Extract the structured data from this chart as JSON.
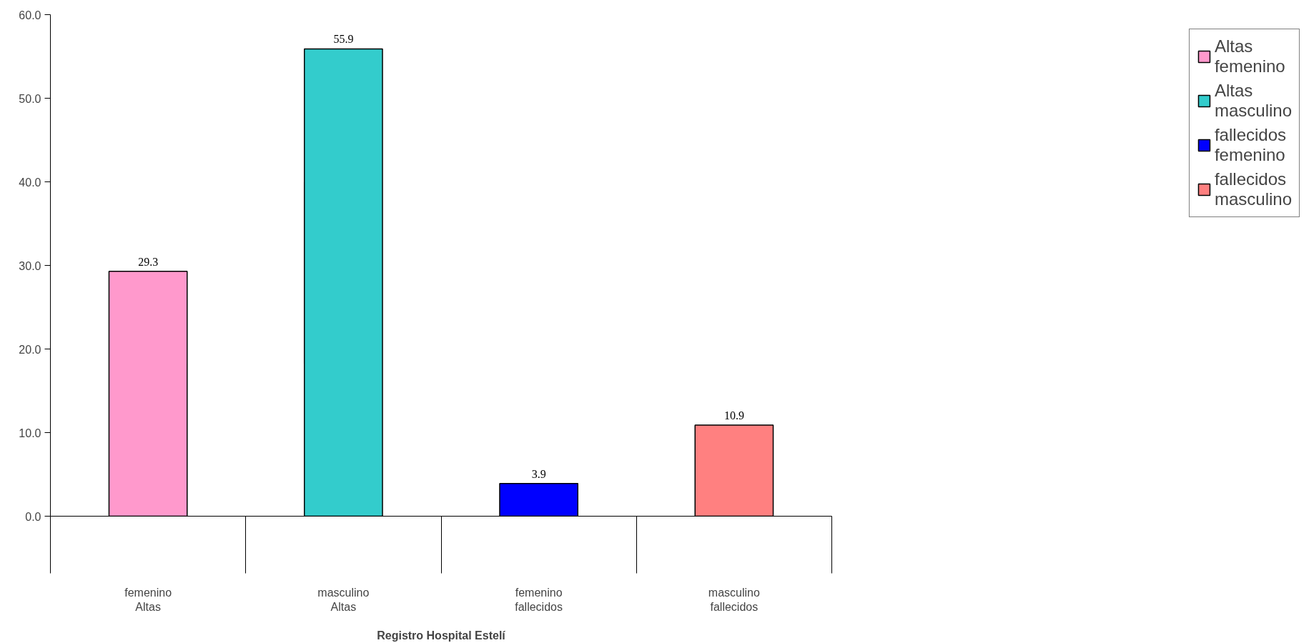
{
  "chart_data": {
    "type": "bar",
    "xlabel": "Registro Hospital Estelí",
    "categories": [
      "femenino\nAltas",
      "masculino\nAltas",
      "femenino\nfallecidos",
      "masculino\nfallecidos"
    ],
    "series": [
      {
        "name": "Altas femenino",
        "color": "#ff99cc",
        "values": [
          29.3,
          null,
          null,
          null
        ]
      },
      {
        "name": "Altas masculino",
        "color": "#33cccc",
        "values": [
          null,
          55.9,
          null,
          null
        ]
      },
      {
        "name": "fallecidos femenino",
        "color": "#0000ff",
        "values": [
          null,
          null,
          3.9,
          null
        ]
      },
      {
        "name": "fallecidos masculino",
        "color": "#ff8080",
        "values": [
          null,
          null,
          null,
          10.9
        ]
      }
    ],
    "ylim": [
      0,
      60
    ],
    "yticks": [
      {
        "value": 0,
        "label": "0.0"
      },
      {
        "value": 10,
        "label": "10.0"
      },
      {
        "value": 20,
        "label": "20.0"
      },
      {
        "value": 30,
        "label": "30.0"
      },
      {
        "value": 40,
        "label": "40.0"
      },
      {
        "value": 50,
        "label": "50.0"
      },
      {
        "value": 60,
        "label": "60.0"
      }
    ],
    "data_labels": true,
    "grid": false,
    "legend": "right"
  }
}
